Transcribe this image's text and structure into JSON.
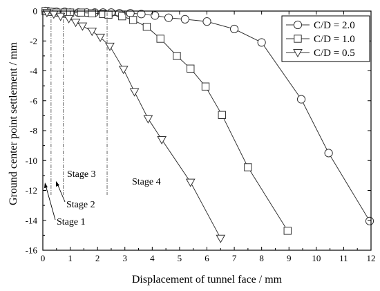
{
  "chart_data": {
    "type": "line",
    "xlabel": "Displacement of tunnel face / mm",
    "ylabel": "Ground center point settlement / mm",
    "xlim": [
      0,
      12
    ],
    "ylim": [
      -16,
      0
    ],
    "xticks": [
      0,
      1,
      2,
      3,
      4,
      5,
      6,
      7,
      8,
      9,
      10,
      11,
      12
    ],
    "yticks": [
      0,
      -2,
      -4,
      -6,
      -8,
      -10,
      -12,
      -14,
      -16
    ],
    "grid": false,
    "legend_position": "top-right",
    "series": [
      {
        "name": "C/D = 2.0",
        "marker": "circle",
        "x": [
          0.1,
          0.3,
          0.5,
          0.8,
          1.0,
          1.3,
          1.6,
          1.9,
          2.2,
          2.5,
          2.8,
          3.2,
          3.6,
          4.1,
          4.6,
          5.2,
          6.0,
          7.0,
          8.0,
          9.45,
          10.45,
          11.95
        ],
        "y": [
          0,
          -0.05,
          -0.05,
          -0.05,
          -0.1,
          -0.1,
          -0.1,
          -0.1,
          -0.1,
          -0.1,
          -0.15,
          -0.15,
          -0.2,
          -0.3,
          -0.45,
          -0.55,
          -0.7,
          -1.2,
          -2.1,
          -5.9,
          -9.5,
          -14.05
        ]
      },
      {
        "name": "C/D = 1.0",
        "marker": "square",
        "x": [
          0.1,
          0.3,
          0.5,
          0.8,
          1.0,
          1.4,
          1.8,
          2.2,
          2.4,
          2.9,
          3.3,
          3.8,
          4.3,
          4.9,
          5.4,
          5.95,
          6.55,
          7.5,
          8.95
        ],
        "y": [
          0,
          -0.05,
          -0.1,
          -0.1,
          -0.1,
          -0.1,
          -0.15,
          -0.2,
          -0.25,
          -0.35,
          -0.6,
          -1.05,
          -1.85,
          -3.0,
          -3.85,
          -5.05,
          -6.95,
          -10.45,
          -14.7
        ]
      },
      {
        "name": "C/D = 0.5",
        "marker": "triangle-down",
        "x": [
          0.15,
          0.4,
          0.65,
          0.95,
          1.2,
          1.45,
          1.8,
          2.1,
          2.45,
          2.95,
          3.35,
          3.85,
          4.35,
          5.4,
          6.5
        ],
        "y": [
          -0.1,
          -0.2,
          -0.35,
          -0.5,
          -0.75,
          -1.0,
          -1.35,
          -1.75,
          -2.35,
          -3.9,
          -5.4,
          -7.2,
          -8.6,
          -11.45,
          -15.2
        ]
      }
    ],
    "stage_lines": [
      0.3,
      0.75,
      2.35
    ],
    "annotations": [
      {
        "text": "Stage 1",
        "target_x": 0.1
      },
      {
        "text": "Stage 2",
        "target_x": 0.5
      },
      {
        "text": "Stage 3"
      },
      {
        "text": "Stage 4"
      }
    ]
  }
}
